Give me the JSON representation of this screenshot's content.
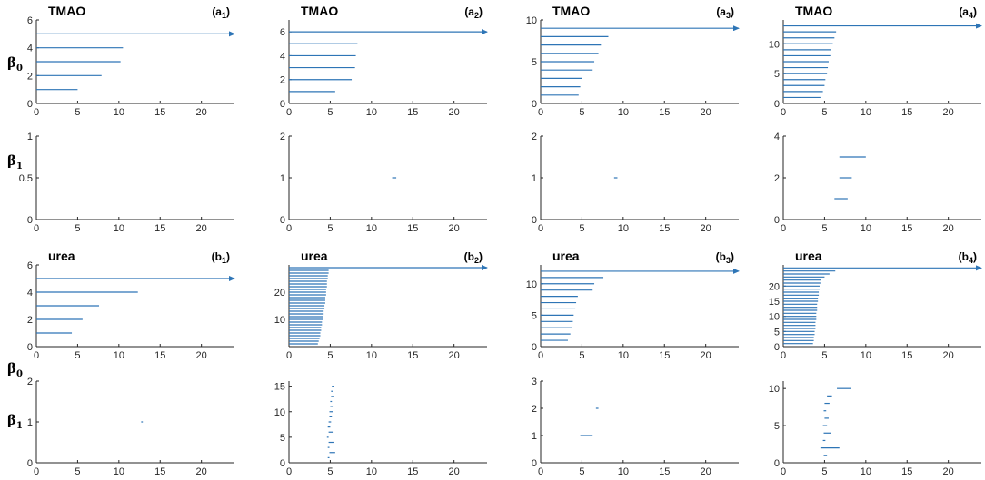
{
  "row_labels": {
    "beta0": {
      "symbol": "β",
      "sub": "0"
    },
    "beta1": {
      "symbol": "β",
      "sub": "1"
    }
  },
  "colors": {
    "bar": "#2E75B6",
    "axis": "#262626"
  },
  "chart_data": [
    {
      "type": "barcode",
      "title": "TMAO",
      "panel_label": "a",
      "panel_sub": "1",
      "xlim": [
        0,
        24
      ],
      "ylim": [
        0,
        6
      ],
      "yticks": [
        0,
        2,
        4,
        6
      ],
      "xticks": [
        0,
        5,
        10,
        15,
        20
      ],
      "bars": [
        {
          "y": 1,
          "x0": 0,
          "x1": 5
        },
        {
          "y": 2,
          "x0": 0,
          "x1": 7.9
        },
        {
          "y": 3,
          "x0": 0,
          "x1": 10.2
        },
        {
          "y": 4,
          "x0": 0,
          "x1": 10.5
        },
        {
          "y": 5,
          "x0": 0,
          "x1": 24,
          "infinite": true
        }
      ]
    },
    {
      "type": "barcode",
      "title": "TMAO",
      "panel_label": "a",
      "panel_sub": "2",
      "xlim": [
        0,
        24
      ],
      "ylim": [
        0,
        7
      ],
      "yticks": [
        0,
        2,
        4,
        6
      ],
      "xticks": [
        0,
        5,
        10,
        15,
        20
      ],
      "bars": [
        {
          "y": 1,
          "x0": 0,
          "x1": 5.6
        },
        {
          "y": 2,
          "x0": 0,
          "x1": 7.6
        },
        {
          "y": 3,
          "x0": 0,
          "x1": 8
        },
        {
          "y": 4,
          "x0": 0,
          "x1": 8.1
        },
        {
          "y": 5,
          "x0": 0,
          "x1": 8.3
        },
        {
          "y": 6,
          "x0": 0,
          "x1": 24,
          "infinite": true
        }
      ]
    },
    {
      "type": "barcode",
      "title": "TMAO",
      "panel_label": "a",
      "panel_sub": "3",
      "xlim": [
        0,
        24
      ],
      "ylim": [
        0,
        10
      ],
      "yticks": [
        0,
        5,
        10
      ],
      "xticks": [
        0,
        5,
        10,
        15,
        20
      ],
      "bars": [
        {
          "y": 1,
          "x0": 0,
          "x1": 4.6
        },
        {
          "y": 2,
          "x0": 0,
          "x1": 4.8
        },
        {
          "y": 3,
          "x0": 0,
          "x1": 5
        },
        {
          "y": 4,
          "x0": 0,
          "x1": 6.3
        },
        {
          "y": 5,
          "x0": 0,
          "x1": 6.5
        },
        {
          "y": 6,
          "x0": 0,
          "x1": 7
        },
        {
          "y": 7,
          "x0": 0,
          "x1": 7.3
        },
        {
          "y": 8,
          "x0": 0,
          "x1": 8.2
        },
        {
          "y": 9,
          "x0": 0,
          "x1": 24,
          "infinite": true
        }
      ]
    },
    {
      "type": "barcode",
      "title": "TMAO",
      "panel_label": "a",
      "panel_sub": "4",
      "xlim": [
        0,
        24
      ],
      "ylim": [
        0,
        14
      ],
      "yticks": [
        0,
        5,
        10
      ],
      "xticks": [
        0,
        5,
        10,
        15,
        20
      ],
      "bars": [
        {
          "y": 1,
          "x0": 0,
          "x1": 4.5
        },
        {
          "y": 2,
          "x0": 0,
          "x1": 4.8
        },
        {
          "y": 3,
          "x0": 0,
          "x1": 5
        },
        {
          "y": 4,
          "x0": 0,
          "x1": 5.1
        },
        {
          "y": 5,
          "x0": 0,
          "x1": 5.3
        },
        {
          "y": 6,
          "x0": 0,
          "x1": 5.4
        },
        {
          "y": 7,
          "x0": 0,
          "x1": 5.5
        },
        {
          "y": 8,
          "x0": 0,
          "x1": 5.7
        },
        {
          "y": 9,
          "x0": 0,
          "x1": 5.8
        },
        {
          "y": 10,
          "x0": 0,
          "x1": 6
        },
        {
          "y": 11,
          "x0": 0,
          "x1": 6.2
        },
        {
          "y": 12,
          "x0": 0,
          "x1": 6.4
        },
        {
          "y": 13,
          "x0": 0,
          "x1": 24,
          "infinite": true
        }
      ]
    },
    {
      "type": "barcode",
      "xlim": [
        0,
        24
      ],
      "ylim": [
        0,
        1
      ],
      "yticks": [
        0,
        0.5,
        1
      ],
      "xticks": [
        0,
        5,
        10,
        15,
        20
      ],
      "bars": []
    },
    {
      "type": "barcode",
      "xlim": [
        0,
        24
      ],
      "ylim": [
        0,
        2
      ],
      "yticks": [
        0,
        1,
        2
      ],
      "xticks": [
        0,
        5,
        10,
        15,
        20
      ],
      "bars": [
        {
          "y": 1,
          "x0": 12.5,
          "x1": 13
        }
      ]
    },
    {
      "type": "barcode",
      "xlim": [
        0,
        24
      ],
      "ylim": [
        0,
        2
      ],
      "yticks": [
        0,
        1,
        2
      ],
      "xticks": [
        0,
        5,
        10,
        15,
        20
      ],
      "bars": [
        {
          "y": 1,
          "x0": 8.9,
          "x1": 9.3
        }
      ]
    },
    {
      "type": "barcode",
      "xlim": [
        0,
        24
      ],
      "ylim": [
        0,
        4
      ],
      "yticks": [
        0,
        2,
        4
      ],
      "xticks": [
        0,
        5,
        10,
        15,
        20
      ],
      "bars": [
        {
          "y": 1,
          "x0": 6.2,
          "x1": 7.8
        },
        {
          "y": 2,
          "x0": 6.8,
          "x1": 8.3
        },
        {
          "y": 3,
          "x0": 6.8,
          "x1": 10
        }
      ]
    },
    {
      "type": "barcode",
      "title": "urea",
      "panel_label": "b",
      "panel_sub": "1",
      "xlim": [
        0,
        24
      ],
      "ylim": [
        0,
        6
      ],
      "yticks": [
        0,
        2,
        4,
        6
      ],
      "xticks": [
        0,
        5,
        10,
        15,
        20
      ],
      "bars": [
        {
          "y": 1,
          "x0": 0,
          "x1": 4.3
        },
        {
          "y": 2,
          "x0": 0,
          "x1": 5.6
        },
        {
          "y": 3,
          "x0": 0,
          "x1": 7.6
        },
        {
          "y": 4,
          "x0": 0,
          "x1": 12.3
        },
        {
          "y": 5,
          "x0": 0,
          "x1": 24,
          "infinite": true
        }
      ]
    },
    {
      "type": "barcode",
      "title": "urea",
      "panel_label": "b",
      "panel_sub": "2",
      "xlim": [
        0,
        24
      ],
      "ylim": [
        0,
        30
      ],
      "yticks": [
        10,
        20
      ],
      "xticks": [
        0,
        5,
        10,
        15,
        20
      ],
      "bars": [
        {
          "y": 1,
          "x0": 0,
          "x1": 3.5
        },
        {
          "y": 2,
          "x0": 0,
          "x1": 3.6
        },
        {
          "y": 3,
          "x0": 0,
          "x1": 3.7
        },
        {
          "y": 4,
          "x0": 0,
          "x1": 3.8
        },
        {
          "y": 5,
          "x0": 0,
          "x1": 3.8
        },
        {
          "y": 6,
          "x0": 0,
          "x1": 3.9
        },
        {
          "y": 7,
          "x0": 0,
          "x1": 3.9
        },
        {
          "y": 8,
          "x0": 0,
          "x1": 4
        },
        {
          "y": 9,
          "x0": 0,
          "x1": 4
        },
        {
          "y": 10,
          "x0": 0,
          "x1": 4.1
        },
        {
          "y": 11,
          "x0": 0,
          "x1": 4.1
        },
        {
          "y": 12,
          "x0": 0,
          "x1": 4.2
        },
        {
          "y": 13,
          "x0": 0,
          "x1": 4.2
        },
        {
          "y": 14,
          "x0": 0,
          "x1": 4.3
        },
        {
          "y": 15,
          "x0": 0,
          "x1": 4.3
        },
        {
          "y": 16,
          "x0": 0,
          "x1": 4.4
        },
        {
          "y": 17,
          "x0": 0,
          "x1": 4.4
        },
        {
          "y": 18,
          "x0": 0,
          "x1": 4.4
        },
        {
          "y": 19,
          "x0": 0,
          "x1": 4.5
        },
        {
          "y": 20,
          "x0": 0,
          "x1": 4.5
        },
        {
          "y": 21,
          "x0": 0,
          "x1": 4.5
        },
        {
          "y": 22,
          "x0": 0,
          "x1": 4.6
        },
        {
          "y": 23,
          "x0": 0,
          "x1": 4.6
        },
        {
          "y": 24,
          "x0": 0,
          "x1": 4.6
        },
        {
          "y": 25,
          "x0": 0,
          "x1": 4.7
        },
        {
          "y": 26,
          "x0": 0,
          "x1": 4.7
        },
        {
          "y": 27,
          "x0": 0,
          "x1": 4.8
        },
        {
          "y": 28,
          "x0": 0,
          "x1": 4.8
        },
        {
          "y": 29,
          "x0": 0,
          "x1": 24,
          "infinite": true
        }
      ]
    },
    {
      "type": "barcode",
      "title": "urea",
      "panel_label": "b",
      "panel_sub": "3",
      "xlim": [
        0,
        24
      ],
      "ylim": [
        0,
        13
      ],
      "yticks": [
        0,
        5,
        10
      ],
      "xticks": [
        0,
        5,
        10,
        15,
        20
      ],
      "bars": [
        {
          "y": 1,
          "x0": 0,
          "x1": 3.3
        },
        {
          "y": 2,
          "x0": 0,
          "x1": 3.6
        },
        {
          "y": 3,
          "x0": 0,
          "x1": 3.8
        },
        {
          "y": 4,
          "x0": 0,
          "x1": 3.9
        },
        {
          "y": 5,
          "x0": 0,
          "x1": 4
        },
        {
          "y": 6,
          "x0": 0,
          "x1": 4.2
        },
        {
          "y": 7,
          "x0": 0,
          "x1": 4.3
        },
        {
          "y": 8,
          "x0": 0,
          "x1": 4.5
        },
        {
          "y": 9,
          "x0": 0,
          "x1": 6.3
        },
        {
          "y": 10,
          "x0": 0,
          "x1": 6.5
        },
        {
          "y": 11,
          "x0": 0,
          "x1": 7.6
        },
        {
          "y": 12,
          "x0": 0,
          "x1": 24,
          "infinite": true
        }
      ]
    },
    {
      "type": "barcode",
      "title": "urea",
      "panel_label": "b",
      "panel_sub": "4",
      "xlim": [
        0,
        24
      ],
      "ylim": [
        0,
        27
      ],
      "yticks": [
        0,
        5,
        10,
        15,
        20
      ],
      "xticks": [
        0,
        5,
        10,
        15,
        20
      ],
      "bars": [
        {
          "y": 1,
          "x0": 0,
          "x1": 3.6
        },
        {
          "y": 2,
          "x0": 0,
          "x1": 3.7
        },
        {
          "y": 3,
          "x0": 0,
          "x1": 3.7
        },
        {
          "y": 4,
          "x0": 0,
          "x1": 3.8
        },
        {
          "y": 5,
          "x0": 0,
          "x1": 3.8
        },
        {
          "y": 6,
          "x0": 0,
          "x1": 3.9
        },
        {
          "y": 7,
          "x0": 0,
          "x1": 3.9
        },
        {
          "y": 8,
          "x0": 0,
          "x1": 3.9
        },
        {
          "y": 9,
          "x0": 0,
          "x1": 4
        },
        {
          "y": 10,
          "x0": 0,
          "x1": 4
        },
        {
          "y": 11,
          "x0": 0,
          "x1": 4
        },
        {
          "y": 12,
          "x0": 0,
          "x1": 4.1
        },
        {
          "y": 13,
          "x0": 0,
          "x1": 4.1
        },
        {
          "y": 14,
          "x0": 0,
          "x1": 4.1
        },
        {
          "y": 15,
          "x0": 0,
          "x1": 4.2
        },
        {
          "y": 16,
          "x0": 0,
          "x1": 4.2
        },
        {
          "y": 17,
          "x0": 0,
          "x1": 4.3
        },
        {
          "y": 18,
          "x0": 0,
          "x1": 4.3
        },
        {
          "y": 19,
          "x0": 0,
          "x1": 4.4
        },
        {
          "y": 20,
          "x0": 0,
          "x1": 4.4
        },
        {
          "y": 21,
          "x0": 0,
          "x1": 4.5
        },
        {
          "y": 22,
          "x0": 0,
          "x1": 4.6
        },
        {
          "y": 23,
          "x0": 0,
          "x1": 5
        },
        {
          "y": 24,
          "x0": 0,
          "x1": 5.6
        },
        {
          "y": 25,
          "x0": 0,
          "x1": 6.3
        },
        {
          "y": 26,
          "x0": 0,
          "x1": 24,
          "infinite": true
        }
      ]
    },
    {
      "type": "barcode",
      "xlim": [
        0,
        24
      ],
      "ylim": [
        0,
        2
      ],
      "yticks": [
        0,
        1,
        2
      ],
      "xticks": [
        0,
        5,
        10,
        15,
        20
      ],
      "bars": [
        {
          "y": 1,
          "x0": 12.7,
          "x1": 12.9
        }
      ]
    },
    {
      "type": "barcode",
      "xlim": [
        0,
        24
      ],
      "ylim": [
        0,
        16
      ],
      "yticks": [
        0,
        5,
        10,
        15
      ],
      "xticks": [
        0,
        5,
        10,
        15,
        20
      ],
      "bars": [
        {
          "y": 1,
          "x0": 4.7,
          "x1": 4.9
        },
        {
          "y": 2,
          "x0": 4.9,
          "x1": 5.6
        },
        {
          "y": 3,
          "x0": 4.7,
          "x1": 4.9
        },
        {
          "y": 4,
          "x0": 4.8,
          "x1": 5.5
        },
        {
          "y": 5,
          "x0": 4.6,
          "x1": 4.8
        },
        {
          "y": 6,
          "x0": 4.8,
          "x1": 5.4
        },
        {
          "y": 7,
          "x0": 4.7,
          "x1": 5
        },
        {
          "y": 8,
          "x0": 4.8,
          "x1": 5.1
        },
        {
          "y": 9,
          "x0": 4.9,
          "x1": 5.2
        },
        {
          "y": 10,
          "x0": 4.9,
          "x1": 5.3
        },
        {
          "y": 11,
          "x0": 5,
          "x1": 5.4
        },
        {
          "y": 12,
          "x0": 5,
          "x1": 5.2
        },
        {
          "y": 13,
          "x0": 5.1,
          "x1": 5.5
        },
        {
          "y": 14,
          "x0": 5.1,
          "x1": 5.3
        },
        {
          "y": 15,
          "x0": 5.2,
          "x1": 5.5
        }
      ]
    },
    {
      "type": "barcode",
      "xlim": [
        0,
        24
      ],
      "ylim": [
        0,
        3
      ],
      "yticks": [
        0,
        1,
        2,
        3
      ],
      "xticks": [
        0,
        5,
        10,
        15,
        20
      ],
      "bars": [
        {
          "y": 1,
          "x0": 4.8,
          "x1": 6.3
        },
        {
          "y": 2,
          "x0": 6.7,
          "x1": 7
        }
      ]
    },
    {
      "type": "barcode",
      "xlim": [
        0,
        24
      ],
      "ylim": [
        0,
        11
      ],
      "yticks": [
        0,
        5,
        10
      ],
      "xticks": [
        0,
        5,
        10,
        15,
        20
      ],
      "bars": [
        {
          "y": 1,
          "x0": 4.9,
          "x1": 5.3
        },
        {
          "y": 2,
          "x0": 4.5,
          "x1": 6.8
        },
        {
          "y": 3,
          "x0": 4.8,
          "x1": 5.1
        },
        {
          "y": 4,
          "x0": 4.9,
          "x1": 5.8
        },
        {
          "y": 5,
          "x0": 4.8,
          "x1": 5.3
        },
        {
          "y": 6,
          "x0": 5,
          "x1": 5.5
        },
        {
          "y": 7,
          "x0": 4.9,
          "x1": 5.2
        },
        {
          "y": 8,
          "x0": 5,
          "x1": 5.6
        },
        {
          "y": 9,
          "x0": 5.3,
          "x1": 5.9
        },
        {
          "y": 10,
          "x0": 6.5,
          "x1": 8.2
        }
      ]
    }
  ]
}
